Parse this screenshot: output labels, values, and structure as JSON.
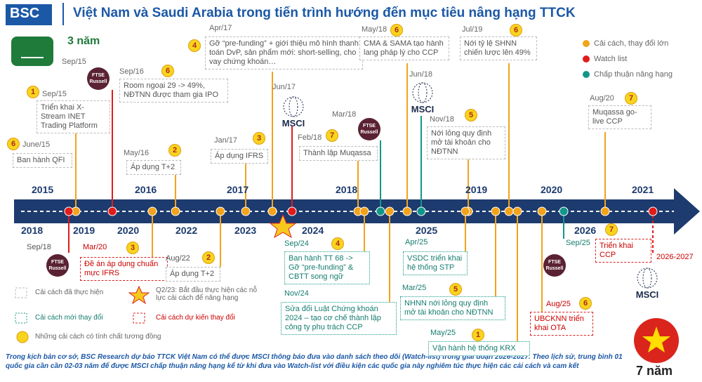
{
  "header": {
    "logo": "BSC",
    "title": "Việt Nam và Saudi Arabia trong tiến trình hướng đến mục tiêu nâng hạng TTCK"
  },
  "legend_top": [
    "Cải cách, thay đổi lớn",
    "Watch list",
    "Chấp thuận nâng hạng"
  ],
  "legend_bottom": {
    "done": "Cải cách đã thực hiện",
    "new": "Cải cách mới thay đổi",
    "planned": "Cải cách dự kiến thay đổi",
    "star": "Q2/23: Bắt đầu thực hiện các nỗ lực cải cách để nâng hạng",
    "badge": "Những cải cách có tính chất tương đồng"
  },
  "timeline": {
    "years_top": [
      2015,
      2016,
      2017,
      2018,
      2019,
      2020,
      2021
    ],
    "years_bottom": [
      2018,
      2019,
      2020,
      2022,
      2023,
      2024,
      2025,
      2026
    ]
  },
  "saudi": {
    "duration": "3 năm",
    "events": [
      {
        "date": "Sep/15",
        "badge": 1,
        "text": "Triển khai X-Stream INET Trading Platform"
      },
      {
        "date": "June/15",
        "badge": 6,
        "text": "Ban hành QFI"
      },
      {
        "date": "Sep/15",
        "index": "FTSE Russell"
      },
      {
        "date": "Sep/16",
        "badge": 6,
        "text": "Room ngoại 29 -> 49%, NĐTNN được tham gia IPO"
      },
      {
        "date": "May/16",
        "badge": 2,
        "text": "Áp dụng T+2"
      },
      {
        "date": "Apr/17",
        "badge": 4,
        "text": "Gỡ “pre-funding” + giới thiệu mô hình thanh toán DvP, sản phẩm mới: short-selling, cho vay chứng khoán…"
      },
      {
        "date": "Jan/17",
        "badge": 3,
        "text": "Áp dụng IFRS"
      },
      {
        "date": "Jun/17",
        "index": "MSCI"
      },
      {
        "date": "Feb/18",
        "badge": 7,
        "text": "Thành lập Muqassa"
      },
      {
        "date": "Mar/18",
        "index": "FTSE Russell"
      },
      {
        "date": "May/18",
        "badge": 6,
        "text": "CMA & SAMA tạo hành lang pháp lý cho CCP"
      },
      {
        "date": "Jun/18",
        "index": "MSCI"
      },
      {
        "date": "Nov/18",
        "badge": 5,
        "text": "Nới lỏng quy định mở tài khoản cho NĐTNN"
      },
      {
        "date": "Jul/19",
        "badge": 6,
        "text": "Nới tỷ lệ SHNN chiến lược lên 49%"
      },
      {
        "date": "Aug/20",
        "badge": 7,
        "text": "Muqassa go-live CCP"
      }
    ]
  },
  "vietnam": {
    "duration": "7 năm",
    "events": [
      {
        "date": "Sep/18",
        "index": "FTSE Russell"
      },
      {
        "date": "Mar/20",
        "badge": 3,
        "text": "Đề án áp dụng chuẩn mực IFRS"
      },
      {
        "date": "Aug/22",
        "badge": 2,
        "text": "Áp dụng T+2"
      },
      {
        "date": "Sep/24",
        "badge": 4,
        "text": "Ban hành TT 68 -> Gỡ “pre-funding” & CBTT song ngữ"
      },
      {
        "date": "Nov/24",
        "text": "Sửa đổi Luật Chứng khoán 2024 – tạo cơ chế thành lập công ty phụ trách CCP"
      },
      {
        "date": "Apr/25",
        "text": "VSDC triển khai hệ thống STP"
      },
      {
        "date": "Mar/25",
        "badge": 5,
        "text": "NHNN nới lỏng quy định mở tài khoản cho NĐTNN"
      },
      {
        "date": "May/25",
        "badge": 1,
        "text": "Vận hành hệ thống KRX"
      },
      {
        "date": "Sep/25",
        "index": "FTSE Russell"
      },
      {
        "date": "Aug/25",
        "badge": 6,
        "text": "UBCKNN triển khai OTA"
      },
      {
        "badge": 7,
        "text": "Triển khai CCP"
      },
      {
        "date": "2026-2027",
        "index": "MSCI"
      }
    ]
  },
  "footer": "Trong kịch bản cơ sở, BSC Research dự báo TTCK Việt Nam có thể được MSCI thông báo đưa vào danh sách theo dõi (Watch-list) trong giai đoạn 2026-2027. Theo lịch sử, trung bình 01 quốc gia cần cần 02-03 năm để được MSCI chấp thuận nâng hạng kể từ khi đưa vào Watch-list với điều kiện các quốc gia này nghiêm túc thực hiện các cải cách và cam kết"
}
